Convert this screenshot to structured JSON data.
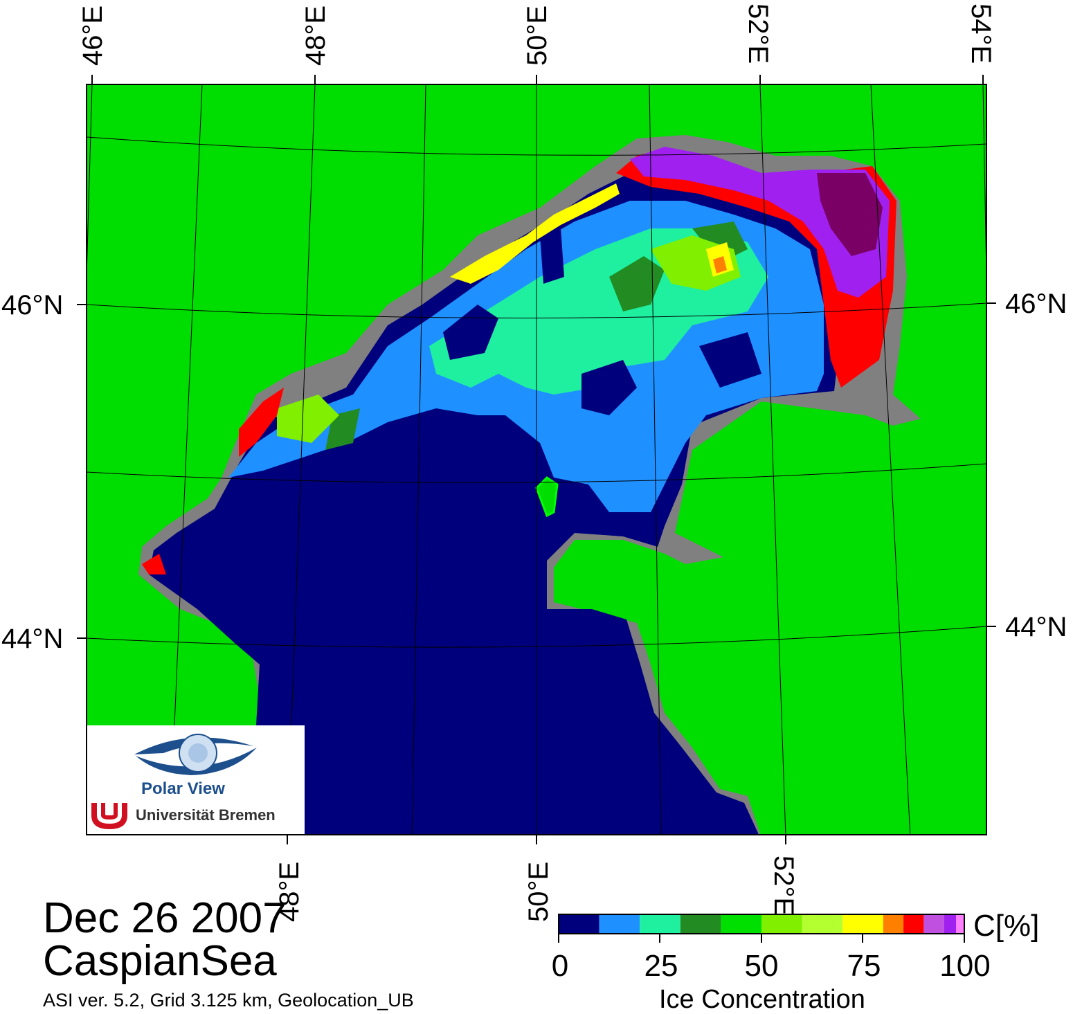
{
  "title": {
    "date": "Dec 26 2007",
    "region": "CaspianSea",
    "meta": "ASI ver. 5.2,  Grid 3.125 km, Geolocation_UB"
  },
  "axes": {
    "top_lon_labels": [
      "46°E",
      "48°E",
      "50°E",
      "52°E",
      "54°E"
    ],
    "bottom_lon_labels": [
      "48°E",
      "50°E",
      "52°E"
    ],
    "left_lat_labels": [
      "46°N",
      "44°N"
    ],
    "right_lat_labels": [
      "46°N",
      "44°N"
    ]
  },
  "colorbar": {
    "unit": "C[%]",
    "title": "Ice Concentration",
    "ticks": [
      "0",
      "25",
      "50",
      "75",
      "100"
    ],
    "range": [
      0,
      100
    ],
    "colors": [
      "#00007c",
      "#1e90ff",
      "#1ef0a0",
      "#228b22",
      "#00e000",
      "#80f000",
      "#b4ff30",
      "#ffff00",
      "#ff8000",
      "#ff0000",
      "#c050e0",
      "#a020f0",
      "#ff80ff"
    ]
  },
  "legend_colors": {
    "land": "#00dd00",
    "coast": "#808080",
    "open_water": "#00007c"
  },
  "logo": {
    "name": "Polar View",
    "institution": "Universität Bremen"
  }
}
